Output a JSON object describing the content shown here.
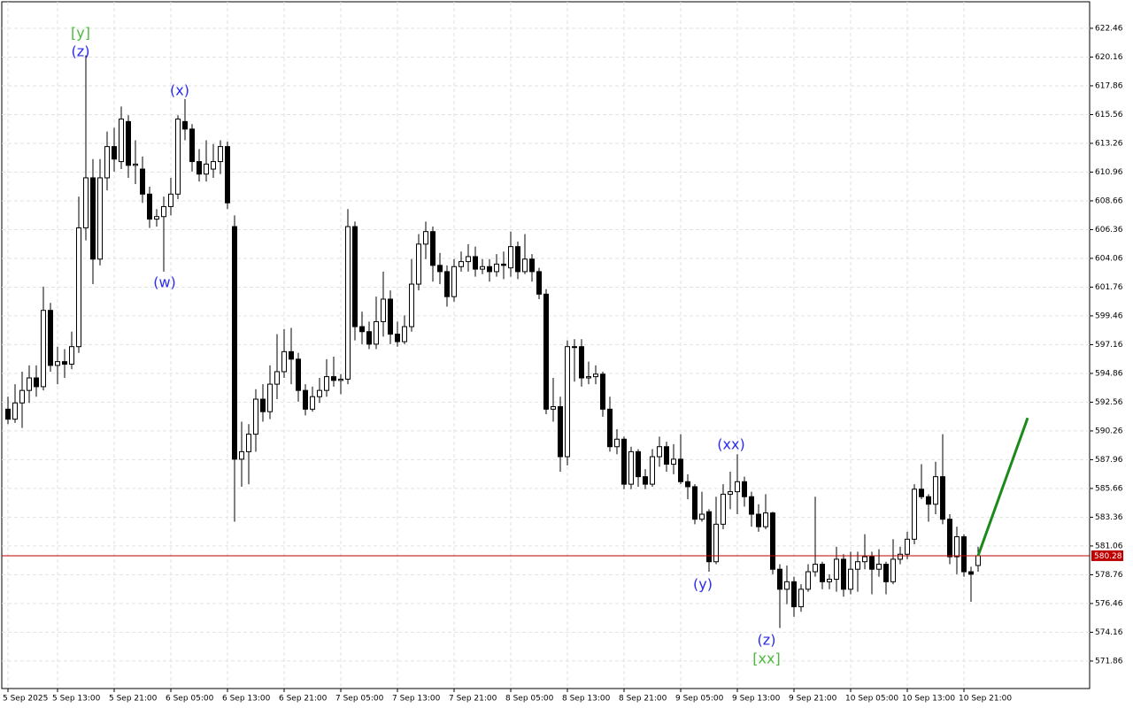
{
  "chart_data": {
    "type": "candlestick",
    "categories": [
      "5 Sep 2025",
      null,
      null,
      null,
      null,
      null,
      null,
      "5 Sep 13:00",
      null,
      null,
      null,
      null,
      null,
      null,
      null,
      "5 Sep 21:00",
      null,
      null,
      null,
      null,
      null,
      null,
      null,
      "6 Sep 05:00",
      null,
      null,
      null,
      null,
      null,
      null,
      null,
      "6 Sep 13:00",
      null,
      null,
      null,
      null,
      null,
      null,
      null,
      "6 Sep 21:00",
      null,
      null,
      null,
      null,
      null,
      null,
      null,
      "7 Sep 05:00",
      null,
      null,
      null,
      null,
      null,
      null,
      null,
      "7 Sep 13:00",
      null,
      null,
      null,
      null,
      null,
      null,
      null,
      "7 Sep 21:00",
      null,
      null,
      null,
      null,
      null,
      null,
      null,
      "8 Sep 05:00",
      null,
      null,
      null,
      null,
      null,
      null,
      null,
      "8 Sep 13:00",
      null,
      null,
      null,
      null,
      null,
      null,
      null,
      "8 Sep 21:00",
      null,
      null,
      null,
      null,
      null,
      null,
      null,
      "9 Sep 05:00",
      null,
      null,
      null,
      null,
      null,
      null,
      null,
      "9 Sep 13:00",
      null,
      null,
      null,
      null,
      null,
      null,
      null,
      "9 Sep 21:00",
      null,
      null,
      null,
      null,
      null,
      null,
      null,
      "10 Sep 05:00",
      null,
      null,
      null,
      null,
      null,
      null,
      null,
      "10 Sep 13:00",
      null,
      null,
      null,
      null,
      null,
      null,
      null,
      "10 Sep 21:00",
      null,
      null
    ],
    "open": [
      592.0,
      591.2,
      592.5,
      593.5,
      594.5,
      593.8,
      599.9,
      595.5,
      595.8,
      595.6,
      597.0,
      606.5,
      610.5,
      604.0,
      610.5,
      613.0,
      611.8,
      615.0,
      611.5,
      611.2,
      609.2,
      607.2,
      607.4,
      608.2,
      609.2,
      615.0,
      614.4,
      611.8,
      610.8,
      611.2,
      611.8,
      613.0,
      606.6,
      588.0,
      588.6,
      590.0,
      592.8,
      591.8,
      594.0,
      595.0,
      596.6,
      596.0,
      593.5,
      592.0,
      593.0,
      593.5,
      594.6,
      594.3,
      594.4,
      606.6,
      598.6,
      598.2,
      597.2,
      599.0,
      600.8,
      598.0,
      597.4,
      598.6,
      602.0,
      605.2,
      606.2,
      603.5,
      603.0,
      601.0,
      603.4,
      603.8,
      604.2,
      603.2,
      603.4,
      603.0,
      603.6,
      603.3,
      605.0,
      603.0,
      604.0,
      603.0,
      601.2,
      592.0,
      592.2,
      588.2,
      597.0,
      597.0,
      594.5,
      594.6,
      594.8,
      592.0,
      589.0,
      589.6,
      586.0,
      588.6,
      586.6,
      586.0,
      588.2,
      589.0,
      587.6,
      588.0,
      586.2,
      585.8,
      583.2,
      583.8,
      579.8,
      582.8,
      585.2,
      585.4,
      586.2,
      585.0,
      583.6,
      582.6,
      583.7,
      579.2,
      577.6,
      578.2,
      576.2,
      577.6,
      579.0,
      579.6,
      578.2,
      578.4,
      580.0,
      577.6,
      579.2,
      579.8,
      580.2,
      579.2,
      579.6,
      578.2,
      580.0,
      580.4,
      581.6,
      585.6,
      585.0,
      584.4,
      586.6,
      583.2,
      580.2,
      581.8,
      579.0,
      579.5
    ],
    "high": [
      593.0,
      594.0,
      595.0,
      595.5,
      595.5,
      601.8,
      600.5,
      597.0,
      596.8,
      598.2,
      609.0,
      620.3,
      612.0,
      612.0,
      614.2,
      614.5,
      616.2,
      615.5,
      613.5,
      612.2,
      609.8,
      608.0,
      609.0,
      610.5,
      615.5,
      616.8,
      614.8,
      612.8,
      613.5,
      613.2,
      613.5,
      613.4,
      607.5,
      591.0,
      590.8,
      593.6,
      594.0,
      595.5,
      598.0,
      598.4,
      598.5,
      596.5,
      594.0,
      593.8,
      594.5,
      596.0,
      596.2,
      594.8,
      608.0,
      607.0,
      599.8,
      599.0,
      601.0,
      603.0,
      601.5,
      599.0,
      599.5,
      604.0,
      606.0,
      607.0,
      606.6,
      604.5,
      603.5,
      604.0,
      604.6,
      605.2,
      605.0,
      604.0,
      604.0,
      604.4,
      604.6,
      606.2,
      605.4,
      606.0,
      604.4,
      603.3,
      601.6,
      594.5,
      593.0,
      597.5,
      597.6,
      597.6,
      595.8,
      595.5,
      595.0,
      593.0,
      590.4,
      589.8,
      589.0,
      588.8,
      587.2,
      588.8,
      589.8,
      589.4,
      589.2,
      590.0,
      586.8,
      586.0,
      585.4,
      584.0,
      585.0,
      586.0,
      587.0,
      588.4,
      586.6,
      585.4,
      584.4,
      585.2,
      583.8,
      579.6,
      579.5,
      578.6,
      578.0,
      579.6,
      585.0,
      579.8,
      578.8,
      581.0,
      580.4,
      580.6,
      580.6,
      582.0,
      580.6,
      580.8,
      579.8,
      581.6,
      581.0,
      582.2,
      586.0,
      587.6,
      585.2,
      587.8,
      590.0,
      583.6,
      582.6,
      582.0,
      579.4,
      581.0
    ],
    "low": [
      590.8,
      590.9,
      590.5,
      592.5,
      593.0,
      593.5,
      595.0,
      594.0,
      594.5,
      595.2,
      596.5,
      605.5,
      602.0,
      603.5,
      609.5,
      611.0,
      611.2,
      610.5,
      610.0,
      608.5,
      606.5,
      606.6,
      603.0,
      607.5,
      608.8,
      613.5,
      611.0,
      610.2,
      610.2,
      610.5,
      610.8,
      608.0,
      583.0,
      585.8,
      586.0,
      588.6,
      591.0,
      591.2,
      592.8,
      594.5,
      594.0,
      592.6,
      591.5,
      591.8,
      592.5,
      593.0,
      593.8,
      593.2,
      594.0,
      597.5,
      597.2,
      596.8,
      596.8,
      597.8,
      597.2,
      597.0,
      597.2,
      598.2,
      601.5,
      604.0,
      602.2,
      602.0,
      600.2,
      600.6,
      603.0,
      603.0,
      602.6,
      602.8,
      602.2,
      602.6,
      602.4,
      602.6,
      602.4,
      602.8,
      602.2,
      600.8,
      591.6,
      591.0,
      587.0,
      587.5,
      594.2,
      593.8,
      594.0,
      594.0,
      591.4,
      588.6,
      588.4,
      585.6,
      585.6,
      585.8,
      585.6,
      585.8,
      587.4,
      587.0,
      586.8,
      586.0,
      584.8,
      582.8,
      583.0,
      579.0,
      579.6,
      582.4,
      584.0,
      583.6,
      584.2,
      582.6,
      582.2,
      582.4,
      578.8,
      574.5,
      576.4,
      575.4,
      575.8,
      577.4,
      578.6,
      577.6,
      577.6,
      577.4,
      577.0,
      577.2,
      577.4,
      579.2,
      577.2,
      578.6,
      577.2,
      578.0,
      579.6,
      580.0,
      581.2,
      584.8,
      583.0,
      583.6,
      582.8,
      579.6,
      578.8,
      578.6,
      576.6,
      579.0
    ],
    "close": [
      591.2,
      592.5,
      593.5,
      594.5,
      593.8,
      599.9,
      595.5,
      595.8,
      595.6,
      597.0,
      606.5,
      610.5,
      604.0,
      610.5,
      613.0,
      612.0,
      615.2,
      611.5,
      611.6,
      609.2,
      607.2,
      607.4,
      608.2,
      609.2,
      615.2,
      614.4,
      611.8,
      610.8,
      611.6,
      611.8,
      613.0,
      608.5,
      588.0,
      588.6,
      590.0,
      592.8,
      591.8,
      594.0,
      595.0,
      596.6,
      596.0,
      593.5,
      592.0,
      593.0,
      593.5,
      594.6,
      594.3,
      594.4,
      606.6,
      598.6,
      598.2,
      597.2,
      599.0,
      600.8,
      598.0,
      597.4,
      598.6,
      602.0,
      605.2,
      606.2,
      603.5,
      603.0,
      601.0,
      603.4,
      603.8,
      604.2,
      603.2,
      603.4,
      603.0,
      603.6,
      603.5,
      605.0,
      603.0,
      604.0,
      603.0,
      601.2,
      592.0,
      592.2,
      588.2,
      597.0,
      597.0,
      594.5,
      594.6,
      594.8,
      592.0,
      589.0,
      589.6,
      586.0,
      588.6,
      586.6,
      586.0,
      588.2,
      589.0,
      587.6,
      588.0,
      586.2,
      585.8,
      583.2,
      583.6,
      579.8,
      582.8,
      585.2,
      585.4,
      586.2,
      585.0,
      583.6,
      582.6,
      583.7,
      579.2,
      577.6,
      578.2,
      576.2,
      577.6,
      579.0,
      579.6,
      578.2,
      578.4,
      580.0,
      577.6,
      579.2,
      579.8,
      580.2,
      579.2,
      579.6,
      578.2,
      580.0,
      580.4,
      581.6,
      585.6,
      585.0,
      584.4,
      586.6,
      583.2,
      580.2,
      581.8,
      579.0,
      578.8,
      580.28
    ],
    "ylim": [
      569.66,
      624.58
    ],
    "yticks": [
      622.46,
      620.16,
      617.86,
      615.56,
      613.26,
      610.96,
      608.66,
      606.36,
      604.06,
      601.76,
      599.46,
      597.16,
      594.86,
      592.56,
      590.26,
      587.96,
      585.66,
      583.36,
      581.06,
      578.76,
      576.46,
      574.16,
      571.86
    ],
    "grid": true,
    "current_price": 580.28,
    "current_price_color": "#c00000",
    "projection_target": 591.3,
    "projection_color": "#1a8a1a",
    "annotations": [
      "[y]",
      "(z)",
      "(x)",
      "(w)",
      "(xx)",
      "(y)",
      "(z)",
      "[xx]"
    ]
  }
}
